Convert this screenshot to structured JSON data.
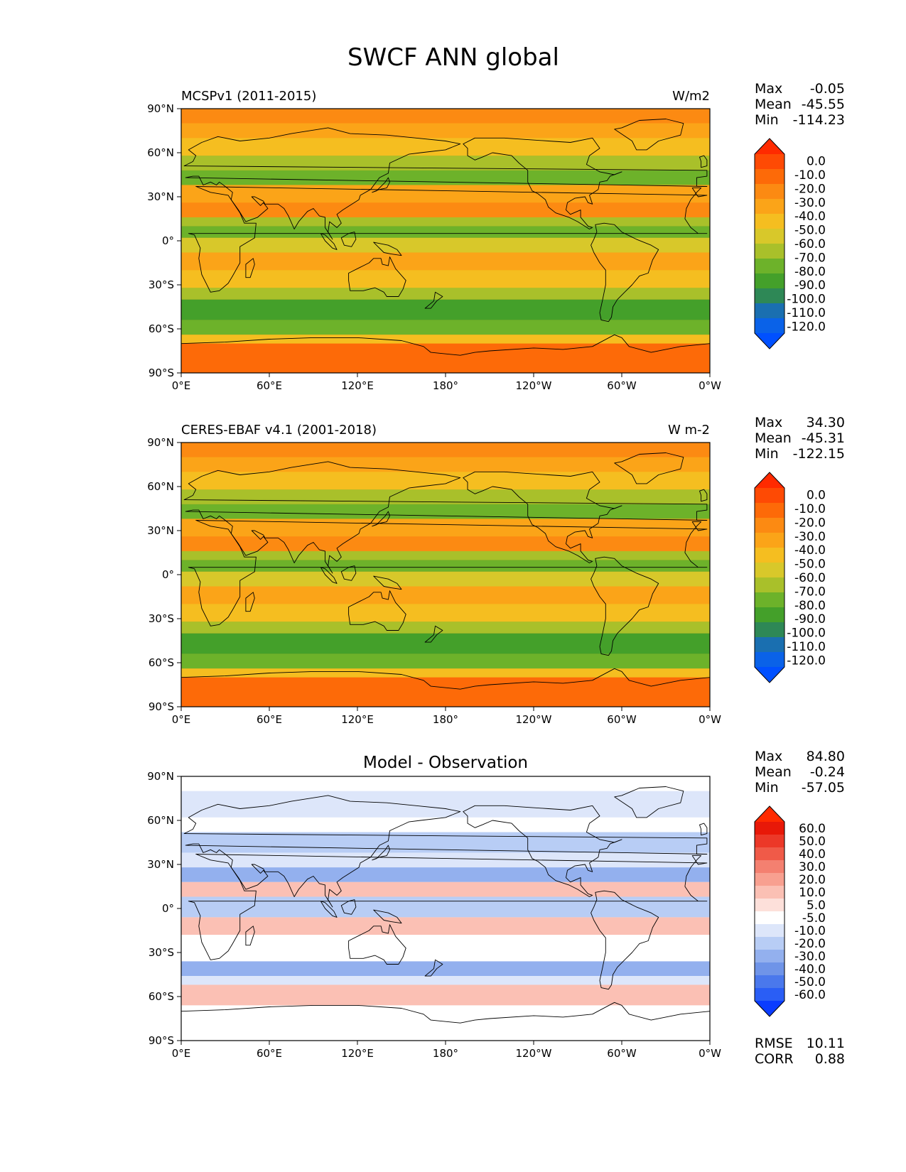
{
  "figure": {
    "title": "SWCF ANN global"
  },
  "lon_ticks": [
    "0°E",
    "60°E",
    "120°E",
    "180°",
    "120°W",
    "60°W",
    "0°W"
  ],
  "lat_ticks": [
    "90°N",
    "60°N",
    "30°N",
    "0°",
    "30°S",
    "60°S",
    "90°S"
  ],
  "colors": {
    "model_levels": [
      "#0050ff",
      "#0a62e8",
      "#1a6fb0",
      "#2e8856",
      "#44a02a",
      "#6db22a",
      "#a9c02a",
      "#d8c82a",
      "#f5be20",
      "#fba418",
      "#fc8a12",
      "#fd6a08",
      "#fe4a04",
      "#ff2a00"
    ],
    "diff_levels": [
      "#0a3cff",
      "#2a5ef5",
      "#4a78ec",
      "#6f94e8",
      "#93b0ee",
      "#b8cdf5",
      "#dde6fa",
      "#ffffff",
      "#fde0da",
      "#fbc0b4",
      "#f8a090",
      "#f48070",
      "#f05a48",
      "#ec3828",
      "#e81808",
      "#ff2a00"
    ],
    "land_outline": "#000000"
  },
  "panels": [
    {
      "id": "model",
      "left_title": "MCSPv1 (2011-2015)",
      "center_title": "",
      "right_title": "W/m2",
      "stats": {
        "Max": "-0.05",
        "Mean": "-45.55",
        "Min": "-114.23"
      },
      "colorbar_labels": [
        "0.0",
        "-10.0",
        "-20.0",
        "-30.0",
        "-40.0",
        "-50.0",
        "-60.0",
        "-70.0",
        "-80.0",
        "-90.0",
        "-100.0",
        "-110.0",
        "-120.0"
      ]
    },
    {
      "id": "obs",
      "left_title": "CERES-EBAF v4.1 (2001-2018)",
      "center_title": "",
      "right_title": "W m-2",
      "stats": {
        "Max": "34.30",
        "Mean": "-45.31",
        "Min": "-122.15"
      },
      "colorbar_labels": [
        "0.0",
        "-10.0",
        "-20.0",
        "-30.0",
        "-40.0",
        "-50.0",
        "-60.0",
        "-70.0",
        "-80.0",
        "-90.0",
        "-100.0",
        "-110.0",
        "-120.0"
      ]
    },
    {
      "id": "diff",
      "left_title": "",
      "center_title": "Model - Observation",
      "right_title": "",
      "stats": {
        "Max": "84.80",
        "Mean": "-0.24",
        "Min": "-57.05"
      },
      "colorbar_labels": [
        "60.0",
        "50.0",
        "40.0",
        "30.0",
        "20.0",
        "10.0",
        "5.0",
        "-5.0",
        "-10.0",
        "-20.0",
        "-30.0",
        "-40.0",
        "-50.0",
        "-60.0"
      ],
      "metrics": {
        "RMSE": "10.11",
        "CORR": "0.88"
      }
    }
  ],
  "chart_data": [
    {
      "type": "heatmap",
      "title": "MCSPv1 (2011-2015)",
      "units": "W/m2",
      "xlim": [
        0,
        360
      ],
      "ylim": [
        -90,
        90
      ],
      "levels": [
        -120,
        -110,
        -100,
        -90,
        -80,
        -70,
        -60,
        -50,
        -40,
        -30,
        -20,
        -10,
        0
      ],
      "stats": {
        "max": -0.05,
        "mean": -45.55,
        "min": -114.23
      }
    },
    {
      "type": "heatmap",
      "title": "CERES-EBAF v4.1 (2001-2018)",
      "units": "W m-2",
      "xlim": [
        0,
        360
      ],
      "ylim": [
        -90,
        90
      ],
      "levels": [
        -120,
        -110,
        -100,
        -90,
        -80,
        -70,
        -60,
        -50,
        -40,
        -30,
        -20,
        -10,
        0
      ],
      "stats": {
        "max": 34.3,
        "mean": -45.31,
        "min": -122.15
      }
    },
    {
      "type": "heatmap",
      "title": "Model - Observation",
      "xlim": [
        0,
        360
      ],
      "ylim": [
        -90,
        90
      ],
      "levels": [
        -60,
        -50,
        -40,
        -30,
        -20,
        -10,
        -5,
        5,
        10,
        20,
        30,
        40,
        50,
        60
      ],
      "stats": {
        "max": 84.8,
        "mean": -0.24,
        "min": -57.05,
        "rmse": 10.11,
        "corr": 0.88
      }
    }
  ]
}
